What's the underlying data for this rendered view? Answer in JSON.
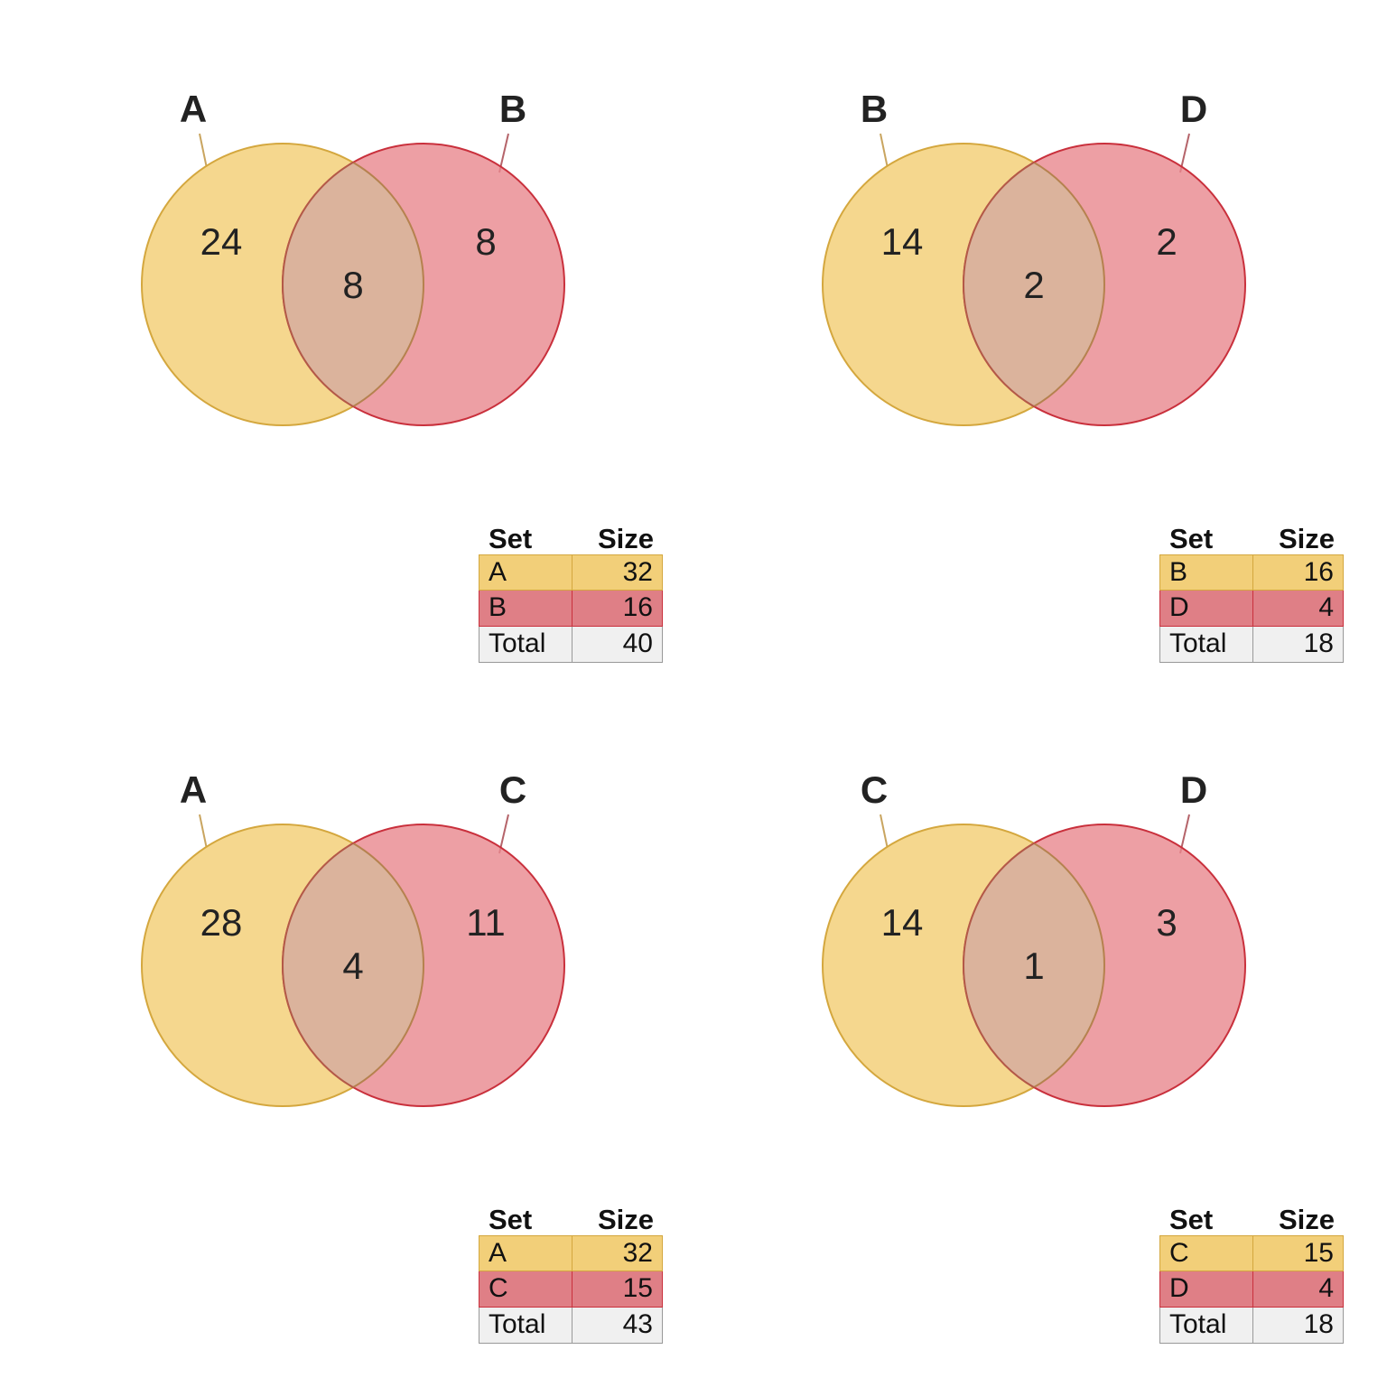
{
  "colors": {
    "left_fill": "#f5d78e",
    "left_stroke": "#d4a73e",
    "right_fill": "#e8878d",
    "right_stroke": "#c9303c",
    "overlap_fill": "#dbb39c",
    "total_fill": "#f0f0f0",
    "total_stroke": "#999999",
    "left_row": "#f2cf79",
    "right_row": "#df7f86"
  },
  "chart_data": [
    {
      "type": "venn",
      "sets": [
        "A",
        "B"
      ],
      "regions": {
        "only_left": "24",
        "both": "8",
        "only_right": "8"
      },
      "table": {
        "header": [
          "Set",
          "Size"
        ],
        "rows": [
          {
            "set": "A",
            "size": "32"
          },
          {
            "set": "B",
            "size": "16"
          },
          {
            "set": "Total",
            "size": "40"
          }
        ]
      }
    },
    {
      "type": "venn",
      "sets": [
        "B",
        "D"
      ],
      "regions": {
        "only_left": "14",
        "both": "2",
        "only_right": "2"
      },
      "table": {
        "header": [
          "Set",
          "Size"
        ],
        "rows": [
          {
            "set": "B",
            "size": "16"
          },
          {
            "set": "D",
            "size": "4"
          },
          {
            "set": "Total",
            "size": "18"
          }
        ]
      }
    },
    {
      "type": "venn",
      "sets": [
        "A",
        "C"
      ],
      "regions": {
        "only_left": "28",
        "both": "4",
        "only_right": "11"
      },
      "table": {
        "header": [
          "Set",
          "Size"
        ],
        "rows": [
          {
            "set": "A",
            "size": "32"
          },
          {
            "set": "C",
            "size": "15"
          },
          {
            "set": "Total",
            "size": "43"
          }
        ]
      }
    },
    {
      "type": "venn",
      "sets": [
        "C",
        "D"
      ],
      "regions": {
        "only_left": "14",
        "both": "1",
        "only_right": "3"
      },
      "table": {
        "header": [
          "Set",
          "Size"
        ],
        "rows": [
          {
            "set": "C",
            "size": "15"
          },
          {
            "set": "D",
            "size": "4"
          },
          {
            "set": "Total",
            "size": "18"
          }
        ]
      }
    }
  ]
}
